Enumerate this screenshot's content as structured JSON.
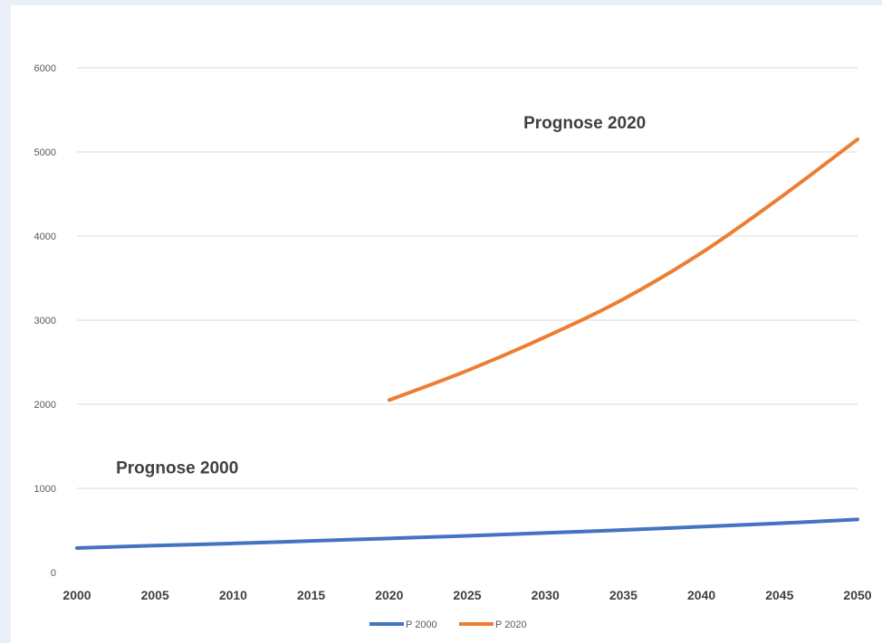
{
  "chart_data": {
    "type": "line",
    "title": "",
    "xlabel": "",
    "ylabel": "",
    "xlim": [
      2000,
      2050
    ],
    "ylim": [
      0,
      6000
    ],
    "x_ticks": [
      "2000",
      "2005",
      "2010",
      "2015",
      "2020",
      "2025",
      "2030",
      "2035",
      "2040",
      "2045",
      "2050"
    ],
    "y_ticks": [
      "0",
      "1000",
      "2000",
      "3000",
      "4000",
      "5000",
      "6000"
    ],
    "grid": true,
    "legend_position": "bottom",
    "series": [
      {
        "name": "P 2000",
        "color": "#4472c4",
        "x": [
          2000,
          2005,
          2010,
          2015,
          2020,
          2025,
          2030,
          2035,
          2040,
          2045,
          2050
        ],
        "values": [
          290,
          320,
          345,
          375,
          405,
          435,
          470,
          505,
          545,
          585,
          630
        ]
      },
      {
        "name": "P 2020",
        "color": "#ed7d31",
        "x": [
          2020,
          2025,
          2030,
          2035,
          2040,
          2045,
          2050
        ],
        "values": [
          2050,
          2400,
          2800,
          3250,
          3800,
          4450,
          5150
        ]
      }
    ],
    "annotations": [
      {
        "text": "Prognose 2020",
        "x": 2028.6,
        "y": 5280
      },
      {
        "text": "Prognose 2000",
        "x": 2002.5,
        "y": 1180
      }
    ]
  }
}
